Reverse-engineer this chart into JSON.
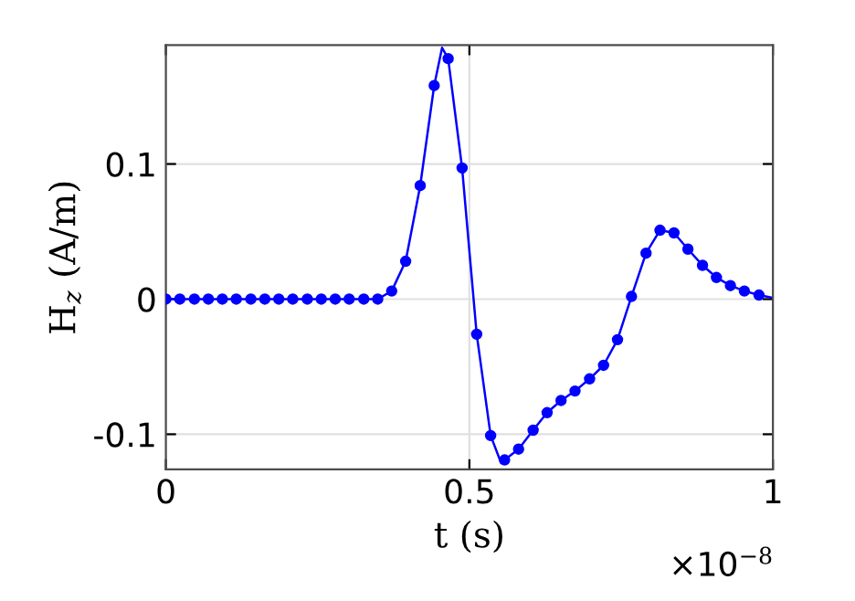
{
  "chart_data": {
    "type": "line",
    "xlabel": "t (s)",
    "ylabel": "H$_{z}$ (A/m)",
    "xlim": [
      0,
      1
    ],
    "ylim": [
      -0.126,
      0.188
    ],
    "xticks": [
      0,
      0.5,
      1
    ],
    "yticks": [
      {
        "value": -0.1,
        "label": "-0.1"
      },
      0,
      0.1
    ],
    "grid": true,
    "annotations": [
      "×10$^{−8}$"
    ],
    "series": [
      {
        "color": "#0000ff",
        "marker": "none",
        "x": [
          0,
          0.349,
          0.372,
          0.395,
          0.419,
          0.442,
          0.455,
          0.465,
          0.488,
          0.512,
          0.535,
          0.552,
          0.558,
          0.581,
          0.605,
          0.628,
          0.651,
          0.674,
          0.698,
          0.721,
          0.744,
          0.767,
          0.791,
          0.814,
          0.837,
          0.86,
          0.884,
          0.907,
          0.93,
          0.953,
          0.977,
          1
        ],
        "values": [
          0,
          0,
          0.006,
          0.028,
          0.084,
          0.158,
          0.186,
          0.178,
          0.097,
          -0.026,
          -0.101,
          -0.121,
          -0.119,
          -0.111,
          -0.097,
          -0.084,
          -0.075,
          -0.068,
          -0.059,
          -0.049,
          -0.03,
          0.002,
          0.034,
          0.051,
          0.049,
          0.037,
          0.025,
          0.016,
          0.01,
          0.006,
          0.003,
          0.001
        ]
      },
      {
        "type": "scatter",
        "color": "#0000ff",
        "marker": "circle",
        "x": [
          0,
          0.023,
          0.047,
          0.07,
          0.093,
          0.116,
          0.14,
          0.163,
          0.186,
          0.209,
          0.233,
          0.256,
          0.279,
          0.302,
          0.326,
          0.349,
          0.372,
          0.395,
          0.419,
          0.442,
          0.465,
          0.488,
          0.512,
          0.535,
          0.558,
          0.581,
          0.605,
          0.628,
          0.651,
          0.674,
          0.698,
          0.721,
          0.744,
          0.767,
          0.791,
          0.814,
          0.837,
          0.86,
          0.884,
          0.907,
          0.93,
          0.953,
          0.977
        ],
        "values": [
          0,
          0,
          0,
          0,
          0,
          0,
          0,
          0,
          0,
          0,
          0,
          0,
          0,
          0,
          0,
          0,
          0.006,
          0.028,
          0.084,
          0.158,
          0.178,
          0.097,
          -0.026,
          -0.101,
          -0.119,
          -0.111,
          -0.097,
          -0.084,
          -0.075,
          -0.068,
          -0.059,
          -0.049,
          -0.03,
          0.002,
          0.034,
          0.051,
          0.049,
          0.037,
          0.025,
          0.016,
          0.01,
          0.006,
          0.003
        ]
      }
    ]
  }
}
